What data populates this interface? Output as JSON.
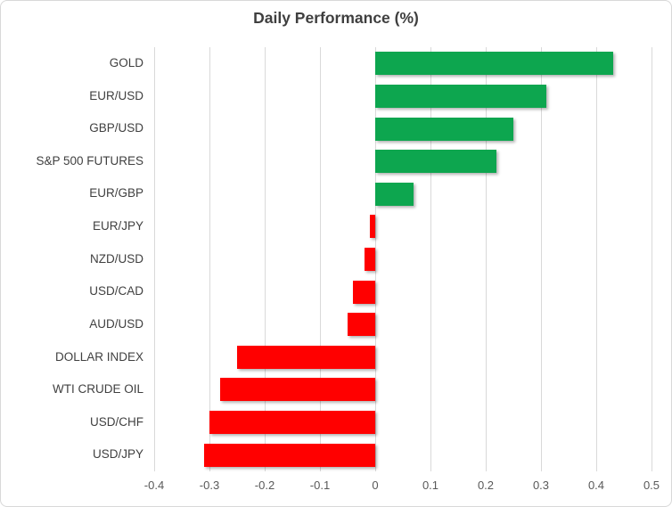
{
  "chart_data": {
    "type": "bar",
    "orientation": "horizontal",
    "title": "Daily Performance (%)",
    "categories": [
      "GOLD",
      "EUR/USD",
      "GBP/USD",
      "S&P 500 FUTURES",
      "EUR/GBP",
      "EUR/JPY",
      "NZD/USD",
      "USD/CAD",
      "AUD/USD",
      "DOLLAR INDEX",
      "WTI CRUDE OIL",
      "USD/CHF",
      "USD/JPY"
    ],
    "values": [
      0.43,
      0.31,
      0.25,
      0.22,
      0.07,
      -0.01,
      -0.02,
      -0.04,
      -0.05,
      -0.25,
      -0.28,
      -0.3,
      -0.31
    ],
    "xlim": [
      -0.4,
      0.5
    ],
    "x_ticks": [
      -0.4,
      -0.3,
      -0.2,
      -0.1,
      0,
      0.1,
      0.2,
      0.3,
      0.4,
      0.5
    ],
    "x_tick_labels": [
      "-0.4",
      "-0.3",
      "-0.2",
      "-0.1",
      "0",
      "0.1",
      "0.2",
      "0.3",
      "0.4",
      "0.5"
    ],
    "grid": true,
    "legend": "none",
    "colors": {
      "positive": "#0da64f",
      "negative": "#ff0000",
      "gridline": "#d9d9d9",
      "title_text": "#3f3f3f",
      "category_text": "#404040",
      "tick_text": "#595959"
    }
  }
}
